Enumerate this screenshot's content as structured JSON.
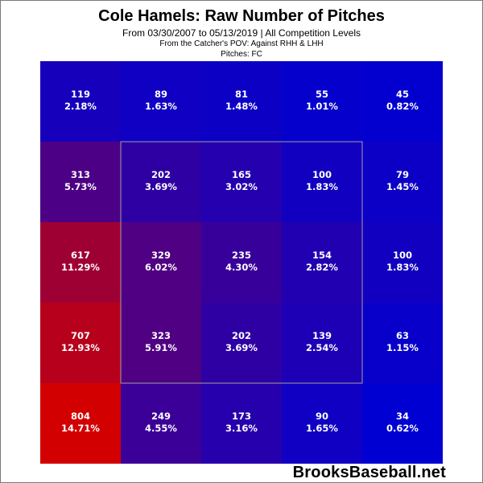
{
  "header": {
    "title": "Cole Hamels: Raw Number of Pitches",
    "subtitle": "From 03/30/2007 to 05/13/2019 | All Competition Levels",
    "pov": "From the Catcher's POV:  Against RHH & LHH",
    "pitches": "Pitches:  FC"
  },
  "watermark": "BrooksBaseball.net",
  "colors": {
    "low": "#0000d2",
    "high": "#d20000",
    "text": "#ffffff",
    "zone_outline": "#a0a0a0"
  },
  "chart_data": {
    "type": "heatmap",
    "title": "Cole Hamels: Raw Number of Pitches",
    "rows": 5,
    "cols": 5,
    "strike_zone": {
      "rows": [
        1,
        3
      ],
      "cols": [
        1,
        3
      ]
    },
    "cells": [
      [
        {
          "count": "119",
          "pct": "2.18%",
          "value": 2.18
        },
        {
          "count": "89",
          "pct": "1.63%",
          "value": 1.63
        },
        {
          "count": "81",
          "pct": "1.48%",
          "value": 1.48
        },
        {
          "count": "55",
          "pct": "1.01%",
          "value": 1.01
        },
        {
          "count": "45",
          "pct": "0.82%",
          "value": 0.82
        }
      ],
      [
        {
          "count": "313",
          "pct": "5.73%",
          "value": 5.73
        },
        {
          "count": "202",
          "pct": "3.69%",
          "value": 3.69
        },
        {
          "count": "165",
          "pct": "3.02%",
          "value": 3.02
        },
        {
          "count": "100",
          "pct": "1.83%",
          "value": 1.83
        },
        {
          "count": "79",
          "pct": "1.45%",
          "value": 1.45
        }
      ],
      [
        {
          "count": "617",
          "pct": "11.29%",
          "value": 11.29
        },
        {
          "count": "329",
          "pct": "6.02%",
          "value": 6.02
        },
        {
          "count": "235",
          "pct": "4.30%",
          "value": 4.3
        },
        {
          "count": "154",
          "pct": "2.82%",
          "value": 2.82
        },
        {
          "count": "100",
          "pct": "1.83%",
          "value": 1.83
        }
      ],
      [
        {
          "count": "707",
          "pct": "12.93%",
          "value": 12.93
        },
        {
          "count": "323",
          "pct": "5.91%",
          "value": 5.91
        },
        {
          "count": "202",
          "pct": "3.69%",
          "value": 3.69
        },
        {
          "count": "139",
          "pct": "2.54%",
          "value": 2.54
        },
        {
          "count": "63",
          "pct": "1.15%",
          "value": 1.15
        }
      ],
      [
        {
          "count": "804",
          "pct": "14.71%",
          "value": 14.71
        },
        {
          "count": "249",
          "pct": "4.55%",
          "value": 4.55
        },
        {
          "count": "173",
          "pct": "3.16%",
          "value": 3.16
        },
        {
          "count": "90",
          "pct": "1.65%",
          "value": 1.65
        },
        {
          "count": "34",
          "pct": "0.62%",
          "value": 0.62
        }
      ]
    ]
  }
}
